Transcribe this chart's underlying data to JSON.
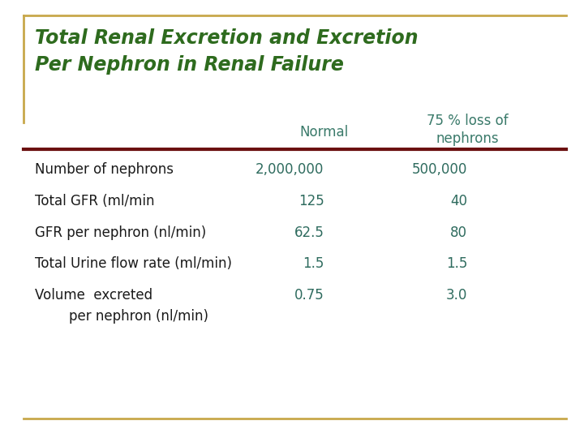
{
  "title_line1": "Total Renal Excretion and Excretion",
  "title_line2": "Per Nephron in Renal Failure",
  "title_color": "#2E6B1E",
  "background_color": "#FFFFFF",
  "border_color": "#C8A84B",
  "col_header_normal": "Normal",
  "col_header_75_line1": "75 % loss of",
  "col_header_75_line2": "nephrons",
  "col_header_color": "#3A7A6A",
  "rows": [
    {
      "label_line1": "Number of nephrons",
      "label_line2": null,
      "val_normal": "2,000,000",
      "val_75": "500,000"
    },
    {
      "label_line1": "Total GFR (ml/min",
      "label_line2": null,
      "val_normal": "125",
      "val_75": "40"
    },
    {
      "label_line1": "GFR per nephron (nl/min)",
      "label_line2": null,
      "val_normal": "62.5",
      "val_75": "80"
    },
    {
      "label_line1": "Total Urine flow rate (ml/min)",
      "label_line2": null,
      "val_normal": "1.5",
      "val_75": "1.5"
    },
    {
      "label_line1": "Volume  excreted",
      "label_line2": "        per nephron (nl/min)",
      "val_normal": "0.75",
      "val_75": "3.0"
    }
  ],
  "label_color": "#1A1A1A",
  "data_color": "#2E6B5E",
  "separator_color": "#6B1010",
  "bottom_line_color": "#C8A84B"
}
